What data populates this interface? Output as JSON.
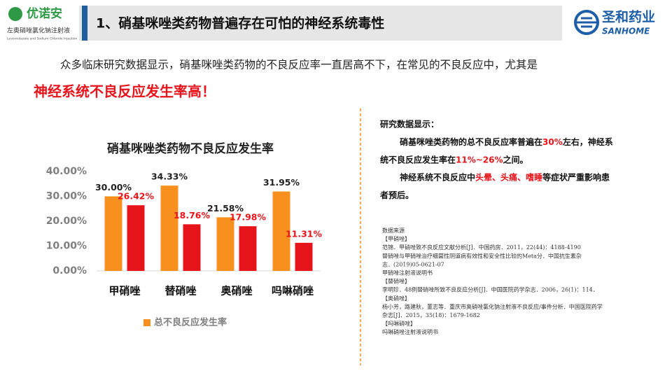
{
  "header": {
    "logo_brand": "优诺安",
    "logo_subtitle": "左奥硝唑氯化钠注射液",
    "logo_subtitle_en": "Levornidazole and Sodium Chloride Injection",
    "title": "1、硝基咪唑类药物普遍存在可怕的神经系统毒性",
    "company_name": "圣和药业",
    "company_name_en": "SANHOME"
  },
  "intro": {
    "text": "众多临床研究数据显示，硝基咪唑类药物的不良反应率一直居高不下，在常见的不良反应中，尤其是",
    "highlight": "神经系统不良反应发生率高！"
  },
  "chart_data": {
    "type": "bar",
    "title": "硝基咪唑类药物不良反应发生率",
    "categories": [
      "甲硝唑",
      "替硝唑",
      "奥硝唑",
      "吗啉硝唑"
    ],
    "series": [
      {
        "name": "总不良反应发生率",
        "color": "#f7901e",
        "label_color": "#222222",
        "values": [
          30.0,
          34.33,
          21.58,
          31.95
        ],
        "value_labels": [
          "30.00%",
          "34.33%",
          "21.58%",
          "31.95%"
        ]
      },
      {
        "color": "#e8141b",
        "label_color": "#e8141b",
        "values": [
          26.42,
          18.76,
          17.98,
          11.31
        ],
        "value_labels": [
          "26.42%",
          "18.76%",
          "17.98%",
          "11.31%"
        ]
      }
    ],
    "ylim": [
      0,
      40
    ],
    "yticks": [
      {
        "value": 0,
        "label": "0.00%"
      },
      {
        "value": 10,
        "label": "10.00%"
      },
      {
        "value": 20,
        "label": "20.00%"
      },
      {
        "value": 30,
        "label": "30.00%"
      },
      {
        "value": 40,
        "label": "40.00%"
      }
    ],
    "grid": false
  },
  "findings": {
    "heading": "研究数据显示：",
    "lines": [
      [
        {
          "text": "硝基咪唑类药物的总不良反应率普遍在"
        },
        {
          "text": "30%",
          "highlight": true
        },
        {
          "text": "左右，神经系"
        }
      ],
      [
        {
          "text": "统不良反应发生率在"
        },
        {
          "text": "11%~26%",
          "highlight": true
        },
        {
          "text": "之间。"
        }
      ],
      [
        {
          "text": "神经系统不良反应中"
        },
        {
          "text": "头晕、头痛、嗜睡",
          "highlight": true
        },
        {
          "text": "等症状严重影响患"
        }
      ],
      [
        {
          "text": "者预后。"
        }
      ]
    ]
  },
  "references": [
    "数据来源",
    "【甲硝唑】",
    "范锦．甲硝唑致不良反应文献分析[J]．中国药房．2011，22(44)：4188-4190",
    "替硝唑与甲硝唑治疗细菌性阴道病有效性和安全性比较的Meta分．中国抗生素杂",
    "志．(2019)05-0621-07",
    "甲硝唑注射液说明书",
    "【替硝唑】",
    "李明珍．48例替硝唑所致不良反应分析[J]．中国医院药学杂志．2006，26(1)：114．",
    "【奥硝唑】",
    "杨小芳，路建秋，董志等．重庆市奥硝唑氯化钠注射液不良反应/事件分析．中国医院药学",
    "杂志[J]．2015，35(18)：1679-1682",
    "【吗啉硝唑】",
    "吗啉硝唑注射液说明书"
  ]
}
